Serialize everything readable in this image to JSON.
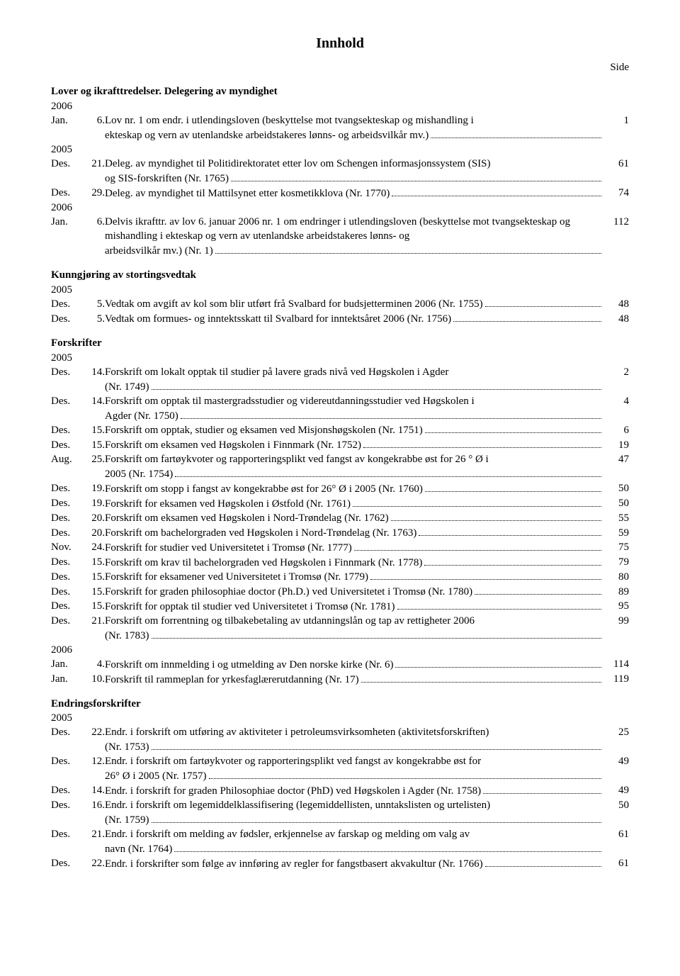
{
  "title": "Innhold",
  "side_label": "Side",
  "sections": [
    {
      "heading": "Lover og ikrafttredelser. Delegering av myndighet",
      "groups": [
        {
          "year": "2006",
          "rows": [
            {
              "month": "Jan.",
              "day": "6.",
              "pre": "Lov nr. 1 om endr. i utlendingsloven (beskyttelse mot tvangsekteskap og mishandling i",
              "last": "ekteskap og vern av utenlandske arbeidstakeres lønns- og arbeidsvilkår mv.)",
              "page": "1"
            }
          ]
        },
        {
          "year": "2005",
          "rows": [
            {
              "month": "Des.",
              "day": "21.",
              "pre": "Deleg. av myndighet til Politidirektoratet etter lov om Schengen informasjonssystem (SIS)",
              "last": "og SIS-forskriften (Nr. 1765)",
              "page": "61"
            },
            {
              "month": "Des.",
              "day": "29.",
              "last": "Deleg. av myndighet til Mattilsynet etter kosmetikklova (Nr. 1770)",
              "page": "74"
            }
          ]
        },
        {
          "year": "2006",
          "rows": [
            {
              "month": "Jan.",
              "day": "6.",
              "pre": "Delvis ikrafttr. av lov 6. januar 2006 nr. 1 om endringer i utlendingsloven (beskyttelse mot tvangsekteskap og mishandling i ekteskap og vern av utenlandske arbeidstakeres lønns- og",
              "last": "arbeidsvilkår mv.) (Nr. 1)",
              "page": "112"
            }
          ]
        }
      ]
    },
    {
      "heading": "Kunngjøring av stortingsvedtak",
      "groups": [
        {
          "year": "2005",
          "rows": [
            {
              "month": "Des.",
              "day": "5.",
              "last": "Vedtak om avgift av kol som blir utført frå Svalbard for budsjetterminen 2006 (Nr. 1755)",
              "page": "48"
            },
            {
              "month": "Des.",
              "day": "5.",
              "last": "Vedtak om formues- og inntektsskatt til Svalbard for inntektsåret 2006 (Nr. 1756)",
              "page": "48"
            }
          ]
        }
      ]
    },
    {
      "heading": "Forskrifter",
      "groups": [
        {
          "year": "2005",
          "rows": [
            {
              "month": "Des.",
              "day": "14.",
              "pre": "Forskrift om lokalt opptak til studier på lavere grads nivå ved Høgskolen i Agder",
              "last": "(Nr. 1749)",
              "page": "2"
            },
            {
              "month": "Des.",
              "day": "14.",
              "pre": "Forskrift om opptak til mastergradsstudier og videreutdanningsstudier ved Høgskolen i",
              "last": "Agder (Nr. 1750)",
              "page": "4"
            },
            {
              "month": "Des.",
              "day": "15.",
              "last": "Forskrift om opptak, studier og eksamen ved Misjonshøgskolen (Nr. 1751)",
              "page": "6"
            },
            {
              "month": "Des.",
              "day": "15.",
              "last": "Forskrift om eksamen ved Høgskolen i Finnmark (Nr. 1752)",
              "page": "19"
            },
            {
              "month": "Aug.",
              "day": "25.",
              "pre": "Forskrift om fartøykvoter og rapporteringsplikt ved fangst av kongekrabbe øst for 26 ° Ø i",
              "last": "2005 (Nr. 1754)",
              "page": "47"
            },
            {
              "month": "Des.",
              "day": "19.",
              "last": "Forskrift om stopp i fangst av kongekrabbe øst for 26° Ø i 2005 (Nr. 1760)",
              "page": "50"
            },
            {
              "month": "Des.",
              "day": "19.",
              "last": "Forskrift for eksamen ved Høgskolen i Østfold (Nr. 1761)",
              "page": "50"
            },
            {
              "month": "Des.",
              "day": "20.",
              "last": "Forskrift om eksamen ved Høgskolen i Nord-Trøndelag (Nr. 1762)",
              "page": "55"
            },
            {
              "month": "Des.",
              "day": "20.",
              "last": "Forskrift om bachelorgraden ved Høgskolen i Nord-Trøndelag (Nr. 1763)",
              "page": "59"
            },
            {
              "month": "Nov.",
              "day": "24.",
              "last": "Forskrift for studier ved Universitetet i Tromsø (Nr. 1777)",
              "page": "75"
            },
            {
              "month": "Des.",
              "day": "15.",
              "last": "Forskrift om krav til bachelorgraden ved Høgskolen i Finnmark (Nr. 1778)",
              "page": "79"
            },
            {
              "month": "Des.",
              "day": "15.",
              "last": "Forskrift for eksamener ved Universitetet i Tromsø (Nr. 1779)",
              "page": "80"
            },
            {
              "month": "Des.",
              "day": "15.",
              "last": "Forskrift for graden philosophiae doctor (Ph.D.) ved Universitetet i Tromsø (Nr. 1780)",
              "page": "89"
            },
            {
              "month": "Des.",
              "day": "15.",
              "last": "Forskrift for opptak til studier ved Universitetet i Tromsø (Nr. 1781)",
              "page": "95"
            },
            {
              "month": "Des.",
              "day": "21.",
              "pre": "Forskrift om forrentning og tilbakebetaling av utdanningslån og tap av rettigheter 2006",
              "last": "(Nr. 1783)",
              "page": "99"
            }
          ]
        },
        {
          "year": "2006",
          "rows": [
            {
              "month": "Jan.",
              "day": "4.",
              "last": "Forskrift om innmelding i og utmelding av Den norske kirke (Nr. 6)",
              "page": "114"
            },
            {
              "month": "Jan.",
              "day": "10.",
              "last": "Forskrift til rammeplan for yrkesfaglærerutdanning (Nr. 17)",
              "page": "119"
            }
          ]
        }
      ]
    },
    {
      "heading": "Endringsforskrifter",
      "groups": [
        {
          "year": "2005",
          "rows": [
            {
              "month": "Des.",
              "day": "22.",
              "pre": "Endr. i forskrift om utføring av aktiviteter i petroleumsvirksomheten (aktivitetsforskriften)",
              "last": "(Nr. 1753)",
              "page": "25"
            },
            {
              "month": "Des.",
              "day": "12.",
              "pre": "Endr. i forskrift om fartøykvoter og rapporteringsplikt ved fangst av kongekrabbe øst for",
              "last": "26° Ø i 2005 (Nr. 1757)",
              "page": "49"
            },
            {
              "month": "Des.",
              "day": "14.",
              "last": "Endr. i forskrift for graden Philosophiae doctor (PhD) ved Høgskolen i Agder (Nr. 1758)",
              "page": "49"
            },
            {
              "month": "Des.",
              "day": "16.",
              "pre": "Endr. i forskrift om legemiddelklassifisering (legemiddellisten, unntakslisten og urtelisten)",
              "last": "(Nr. 1759)",
              "page": "50"
            },
            {
              "month": "Des.",
              "day": "21.",
              "pre": "Endr. i forskrift om melding av fødsler, erkjennelse av farskap og melding om valg av",
              "last": "navn (Nr. 1764)",
              "page": "61"
            },
            {
              "month": "Des.",
              "day": "22.",
              "last": "Endr. i forskrifter som følge av innføring av regler for fangstbasert akvakultur (Nr. 1766)",
              "page": "61"
            }
          ]
        }
      ]
    }
  ]
}
